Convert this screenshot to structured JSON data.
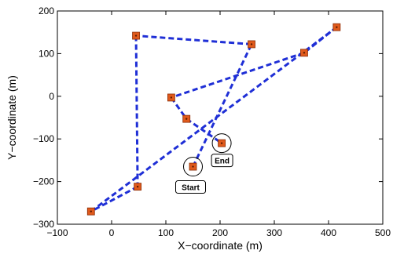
{
  "chart_data": {
    "type": "scatter",
    "title": "",
    "xlabel": "X−coordinate (m)",
    "ylabel": "Y−coordinate (m)",
    "xlim": [
      -100,
      500
    ],
    "ylim": [
      -300,
      200
    ],
    "xticks": [
      -100,
      0,
      100,
      200,
      300,
      400,
      500
    ],
    "yticks": [
      -300,
      -200,
      -100,
      0,
      100,
      200
    ],
    "xtick_labels": [
      "−100",
      "0",
      "100",
      "200",
      "300",
      "400",
      "500"
    ],
    "ytick_labels": [
      "−300",
      "−200",
      "−100",
      "0",
      "100",
      "200"
    ],
    "grid": false,
    "path_color": "#1f2fd6",
    "marker_color": "#e05a1c",
    "series": [
      {
        "points": [
          {
            "x": 150,
            "y": -165
          },
          {
            "x": 258,
            "y": 122
          },
          {
            "x": 45,
            "y": 142
          },
          {
            "x": 48,
            "y": -212
          },
          {
            "x": -38,
            "y": -270
          },
          {
            "x": 415,
            "y": 162
          },
          {
            "x": 355,
            "y": 102
          },
          {
            "x": 110,
            "y": -3
          },
          {
            "x": 138,
            "y": -53
          },
          {
            "x": 203,
            "y": -110
          }
        ]
      }
    ],
    "annotations": [
      {
        "text": "Start",
        "x": 150,
        "y": -165
      },
      {
        "text": "End",
        "x": 203,
        "y": -110
      }
    ]
  }
}
